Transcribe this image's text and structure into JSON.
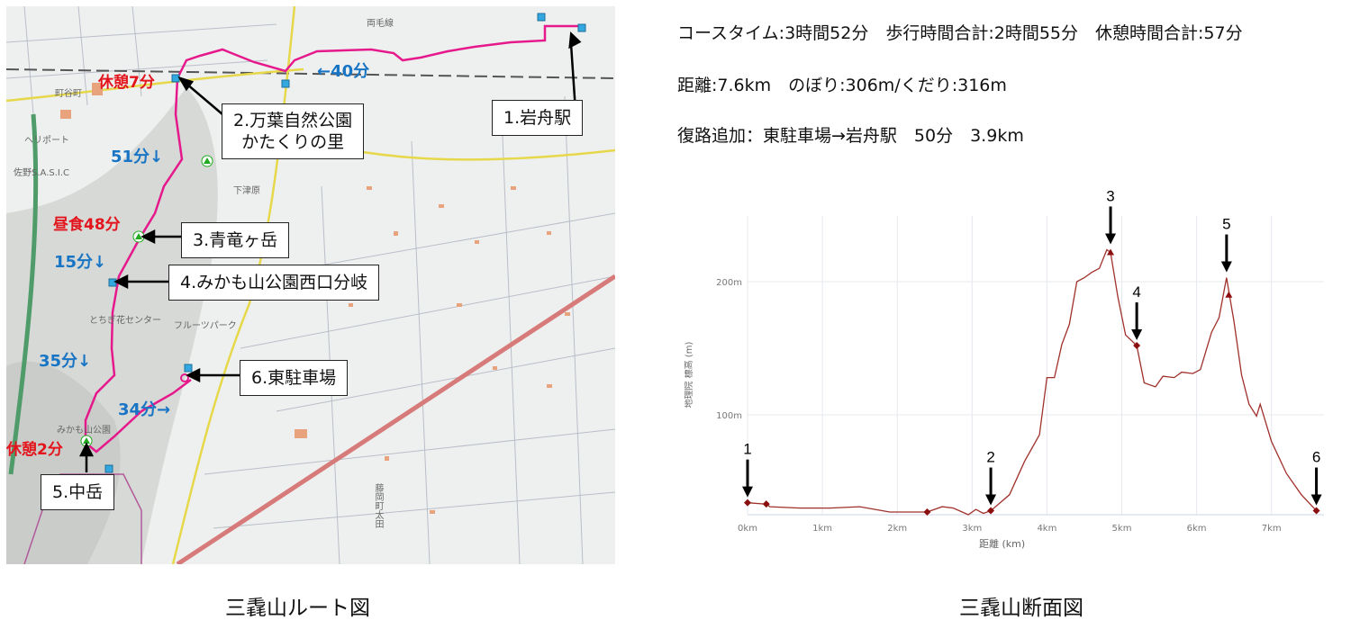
{
  "map": {
    "caption": "三毳山ルート図",
    "points": [
      {
        "label": "1.岩舟駅"
      },
      {
        "label": "2.万葉自然公園",
        "label2": "かたくりの里"
      },
      {
        "label": "3.青竜ヶ岳"
      },
      {
        "label": "4.みかも山公園西口分岐"
      },
      {
        "label": "5.中岳"
      },
      {
        "label": "6.東駐車場"
      }
    ],
    "rests": [
      "休憩7分",
      "昼食48分",
      "休憩2分"
    ],
    "segment_times": [
      "←40分",
      "51分↓",
      "15分↓",
      "35分↓",
      "34分→"
    ],
    "place_names": [
      "両毛線",
      "町谷町",
      "ヘリポート",
      "佐野S.A.S.I.C",
      "下津原",
      "とちぎ花センター",
      "フルーツパーク",
      "みかも山公園",
      "藤岡町太田"
    ],
    "route_color": "#e6198c"
  },
  "info": {
    "line1": "コースタイム:3時間52分　歩行時間合計:2時間55分　休憩時間合計:57分",
    "line2": "距離:7.6km　のぼり:306m/くだり:316m",
    "line3": "復路追加：東駐車場→岩舟駅　50分　3.9km"
  },
  "chart_data": {
    "type": "line",
    "caption": "三毳山断面図",
    "xlabel": "距離 (km)",
    "ylabel": "地理院 標高 (m)",
    "xlim": [
      0,
      7.6
    ],
    "ylim": [
      25,
      250
    ],
    "xticks": [
      "0km",
      "1km",
      "2km",
      "3km",
      "4km",
      "5km",
      "6km",
      "7km"
    ],
    "yticks": [
      "100m",
      "200m"
    ],
    "grid": true,
    "line_color": "#a0302a",
    "x": [
      0,
      0.25,
      0.3,
      0.7,
      1.1,
      1.5,
      1.9,
      2.3,
      2.4,
      2.6,
      2.75,
      2.95,
      3.05,
      3.15,
      3.25,
      3.5,
      3.7,
      3.9,
      4.0,
      4.1,
      4.2,
      4.3,
      4.4,
      4.5,
      4.6,
      4.7,
      4.8,
      4.85,
      4.95,
      5.05,
      5.2,
      5.3,
      5.45,
      5.55,
      5.7,
      5.8,
      5.95,
      6.05,
      6.2,
      6.3,
      6.4,
      6.5,
      6.6,
      6.7,
      6.8,
      6.85,
      7.0,
      7.2,
      7.4,
      7.6
    ],
    "y": [
      34,
      33,
      31,
      30,
      30,
      31,
      27,
      27,
      27,
      31,
      30,
      25,
      29,
      26,
      28,
      40,
      65,
      85,
      128,
      128,
      153,
      168,
      200,
      203,
      207,
      210,
      224,
      222,
      188,
      160,
      152,
      124,
      121,
      129,
      128,
      132,
      131,
      134,
      162,
      173,
      203,
      170,
      130,
      108,
      99,
      108,
      80,
      56,
      40,
      28
    ],
    "markers": [
      {
        "x": 0,
        "y": 34,
        "shape": "diamond",
        "label": "1"
      },
      {
        "x": 0.25,
        "y": 33,
        "shape": "diamond"
      },
      {
        "x": 2.4,
        "y": 27,
        "shape": "diamond"
      },
      {
        "x": 3.25,
        "y": 28,
        "shape": "diamond",
        "label": "2"
      },
      {
        "x": 4.85,
        "y": 222,
        "shape": "triangle",
        "label": "3"
      },
      {
        "x": 5.2,
        "y": 152,
        "shape": "diamond",
        "label": "4"
      },
      {
        "x": 6.43,
        "y": 190,
        "shape": "triangle",
        "label": "5"
      },
      {
        "x": 7.6,
        "y": 28,
        "shape": "diamond",
        "label": "6"
      }
    ],
    "arrow_labels": [
      {
        "label": "1",
        "x": 0,
        "y": 34
      },
      {
        "label": "2",
        "x": 3.25,
        "y": 28
      },
      {
        "label": "3",
        "x": 4.85,
        "y": 224
      },
      {
        "label": "4",
        "x": 5.2,
        "y": 152
      },
      {
        "label": "5",
        "x": 6.4,
        "y": 203
      },
      {
        "label": "6",
        "x": 7.6,
        "y": 28
      }
    ]
  }
}
